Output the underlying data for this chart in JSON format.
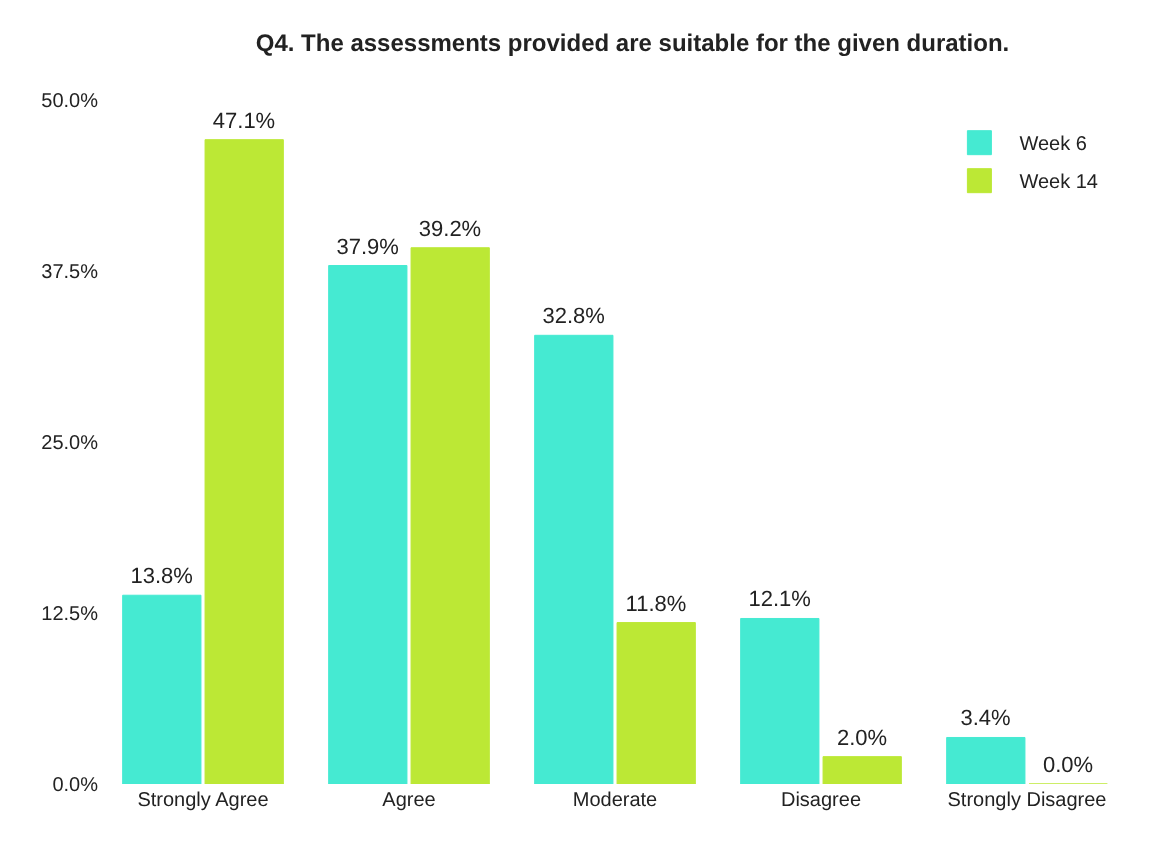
{
  "chart_data": {
    "type": "bar",
    "title": "Q4. The assessments provided are suitable for the given duration.",
    "categories": [
      "Strongly Agree",
      "Agree",
      "Moderate",
      "Disagree",
      "Strongly Disagree"
    ],
    "series": [
      {
        "name": "Week 6",
        "color": "#45ead2",
        "values": [
          13.8,
          37.9,
          32.8,
          12.1,
          3.4
        ],
        "value_labels": [
          "13.8%",
          "37.9%",
          "32.8%",
          "12.1%",
          "3.4%"
        ]
      },
      {
        "name": "Week 14",
        "color": "#bce835",
        "values": [
          47.1,
          39.2,
          11.8,
          2.0,
          0.0
        ],
        "value_labels": [
          "47.1%",
          "39.2%",
          "11.8%",
          "2.0%",
          "0.0%"
        ]
      }
    ],
    "ylim": [
      0,
      50
    ],
    "yticks": [
      {
        "value": 0,
        "label": "0.0%"
      },
      {
        "value": 12.5,
        "label": "12.5%"
      },
      {
        "value": 25,
        "label": "25.0%"
      },
      {
        "value": 37.5,
        "label": "37.5%"
      },
      {
        "value": 50,
        "label": "50.0%"
      }
    ],
    "grid": false,
    "legend": "top right"
  }
}
